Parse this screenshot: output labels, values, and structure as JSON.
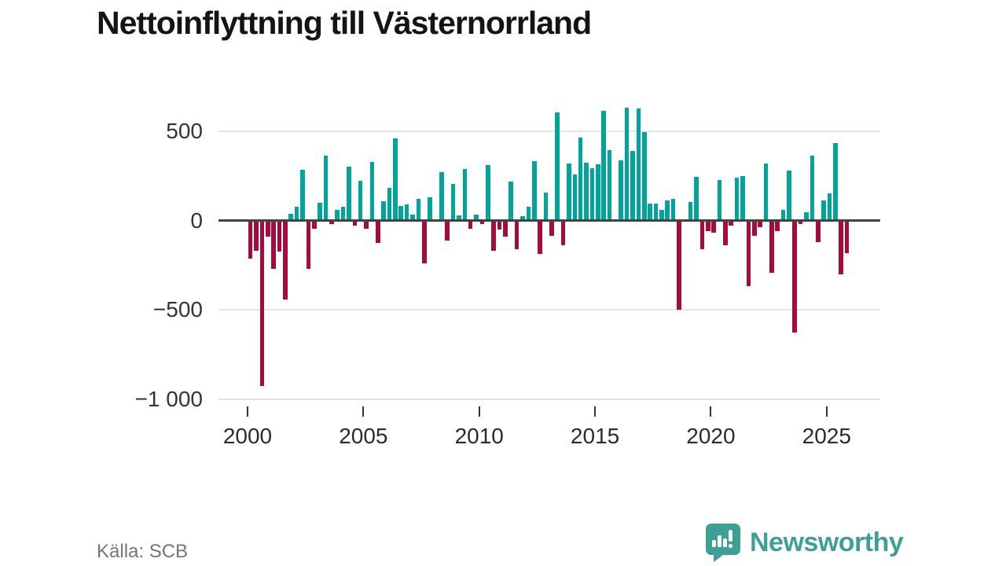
{
  "title": "Nettoinflyttning till Västernorrland",
  "footer": {
    "source": "Källa: SCB"
  },
  "brand": {
    "name": "Newsworthy",
    "color": "#3f9f94"
  },
  "colors": {
    "positive_bar": "#00a49b",
    "negative_bar": "#a60b3c",
    "gridline": "#e5e5e5",
    "zero_axis": "#424242",
    "tick_label": "#333333",
    "title_text": "#141414",
    "source_text": "#757575"
  },
  "chart_data": {
    "type": "bar",
    "title": "Nettoinflyttning till Västernorrland",
    "frequency": "quarterly",
    "start_period": "2000 Q1",
    "end_period": "2025 Q4",
    "values": [
      -213,
      -169,
      -925,
      -88,
      -272,
      -173,
      -441,
      37,
      76,
      282,
      -272,
      -44,
      98,
      363,
      -19,
      59,
      75,
      301,
      -30,
      224,
      -44,
      328,
      -125,
      107,
      184,
      460,
      81,
      88,
      32,
      122,
      -238,
      128,
      0,
      272,
      -110,
      206,
      29,
      287,
      -48,
      32,
      -18,
      312,
      -169,
      -51,
      -91,
      216,
      -162,
      25,
      77,
      334,
      -188,
      154,
      -84,
      605,
      -140,
      319,
      257,
      463,
      323,
      291,
      313,
      615,
      392,
      0,
      338,
      630,
      390,
      625,
      495,
      96,
      96,
      59,
      110,
      122,
      -498,
      0,
      103,
      246,
      -162,
      -59,
      -69,
      225,
      -140,
      -29,
      240,
      250,
      -367,
      -84,
      -37,
      319,
      -294,
      -59,
      59,
      279,
      -628,
      -19,
      44,
      363,
      -122,
      110,
      150,
      434,
      -301,
      -181
    ],
    "yticks": [
      500,
      0,
      -500,
      -1000
    ],
    "ytick_labels": [
      "500",
      "0",
      "−500",
      "−1 000"
    ],
    "xtick_years": [
      2000,
      2005,
      2010,
      2015,
      2020,
      2025
    ],
    "ylim": [
      -1050,
      680
    ],
    "grid": true,
    "legend": "none",
    "positive_color": "#00a49b",
    "negative_color": "#a60b3c"
  }
}
